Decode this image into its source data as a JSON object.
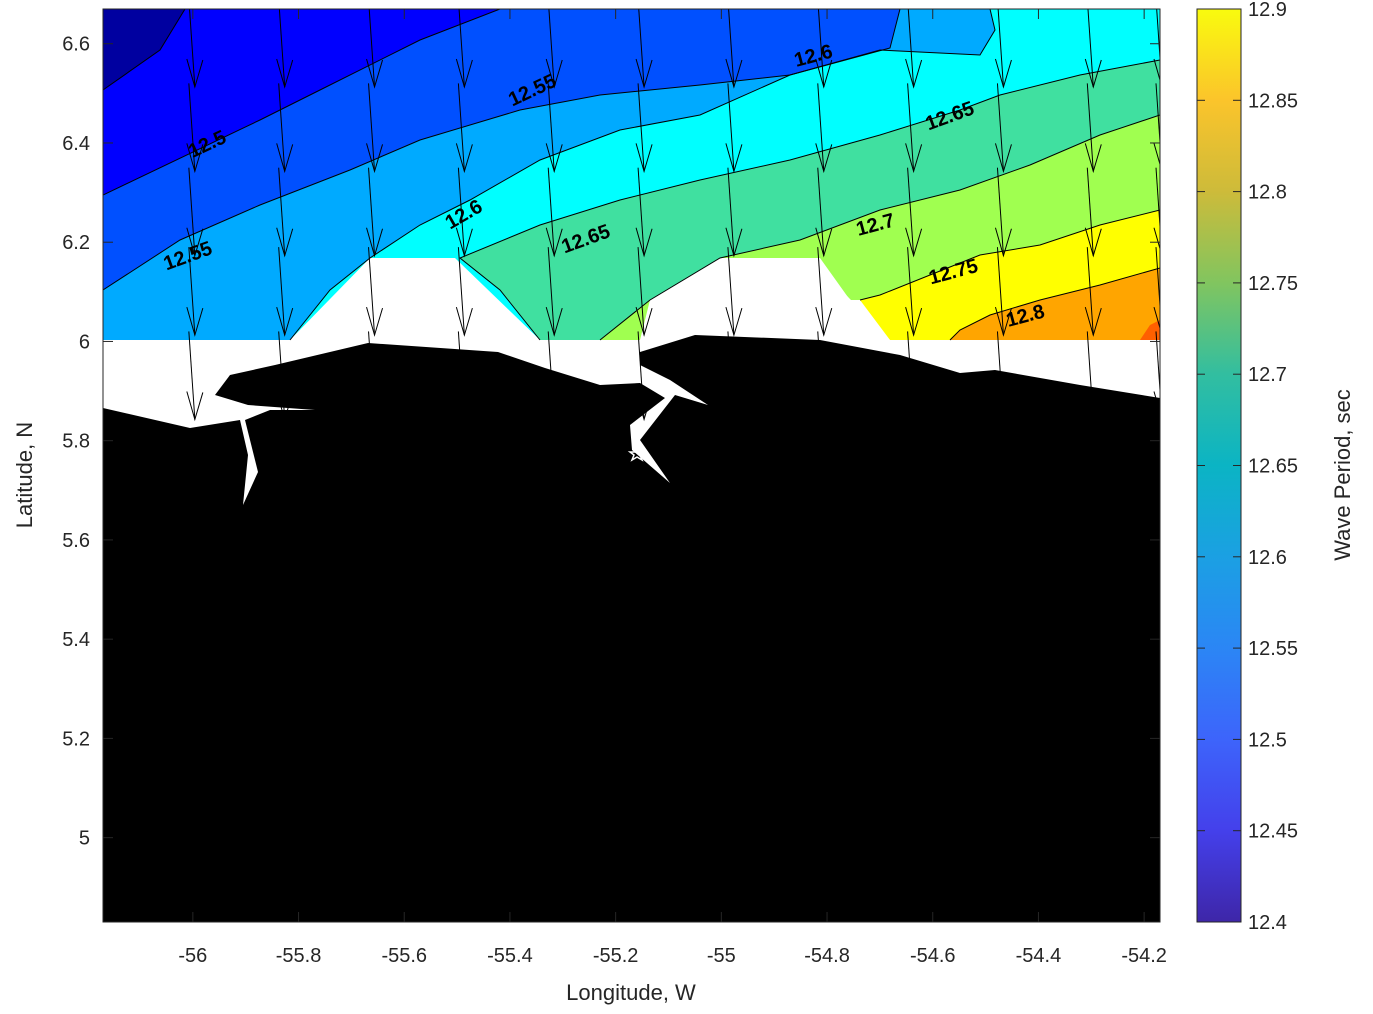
{
  "chart_data": {
    "type": "contour-map",
    "xlabel": "Longitude, W",
    "ylabel": "Latitude, N",
    "xlim": [
      -56.17,
      -54.17
    ],
    "ylim": [
      4.83,
      6.67
    ],
    "x_ticks": [
      "-56",
      "-55.8",
      "-55.6",
      "-55.4",
      "-55.2",
      "-55",
      "-54.8",
      "-54.6",
      "-54.4",
      "-54.2"
    ],
    "x_tick_values": [
      -56,
      -55.8,
      -55.6,
      -55.4,
      -55.2,
      -55,
      -54.8,
      -54.6,
      -54.4,
      -54.2
    ],
    "y_ticks": [
      "5",
      "5.2",
      "5.4",
      "5.6",
      "5.8",
      "6",
      "6.2",
      "6.4",
      "6.6"
    ],
    "y_tick_values": [
      5,
      5.2,
      5.4,
      5.6,
      5.8,
      6,
      6.2,
      6.4,
      6.6
    ],
    "colorbar": {
      "label": "Wave Period, sec",
      "range": [
        12.4,
        12.9
      ],
      "ticks": [
        "12.4",
        "12.45",
        "12.5",
        "12.55",
        "12.6",
        "12.65",
        "12.7",
        "12.75",
        "12.8",
        "12.85",
        "12.9"
      ],
      "tick_values": [
        12.4,
        12.45,
        12.5,
        12.55,
        12.6,
        12.65,
        12.7,
        12.75,
        12.8,
        12.85,
        12.9
      ]
    },
    "contour_levels": [
      12.45,
      12.5,
      12.55,
      12.6,
      12.65,
      12.7,
      12.75,
      12.8,
      12.85
    ],
    "contour_labels": [
      {
        "text": "12.5",
        "value": 12.5
      },
      {
        "text": "12.55",
        "value": 12.55
      },
      {
        "text": "12.55",
        "value": 12.55
      },
      {
        "text": "12.6",
        "value": 12.6
      },
      {
        "text": "12.6",
        "value": 12.6
      },
      {
        "text": "12.65",
        "value": 12.65
      },
      {
        "text": "12.65",
        "value": 12.65
      },
      {
        "text": "12.7",
        "value": 12.7
      },
      {
        "text": "12.75",
        "value": 12.75
      },
      {
        "text": "12.8",
        "value": 12.8
      }
    ],
    "wave_direction_vector_lons": [
      -56.0,
      -55.83,
      -55.66,
      -55.49,
      -55.32,
      -55.15,
      -54.98,
      -54.81,
      -54.64,
      -54.47,
      -54.3,
      -54.17
    ],
    "wave_direction": "approximately southward (slightly south-southeast)",
    "land_color": "#000000",
    "grid": false
  },
  "colors": {
    "land": "#000000",
    "background": "#ffffff",
    "text": "#262626"
  }
}
